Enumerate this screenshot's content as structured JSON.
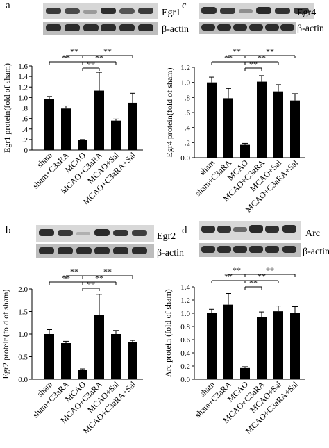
{
  "figure": {
    "panels": [
      "a",
      "b",
      "c",
      "d"
    ]
  },
  "blots": {
    "a": {
      "target": "Egr1",
      "control": "β-actin"
    },
    "b": {
      "target": "Egr2",
      "control": "β-actin"
    },
    "c": {
      "target": "Egr4",
      "control": "β-actin"
    },
    "d": {
      "target": "Arc",
      "control": "β-actin"
    }
  },
  "significance_label": "**",
  "chart_data": [
    {
      "panel": "a",
      "type": "bar",
      "categories": [
        "sham",
        "sham+C3aRA",
        "MCAO",
        "MCAO+C3aRA",
        "MCAO+Sal",
        "MCAO+C3aRA+Sal"
      ],
      "values": [
        0.97,
        0.79,
        0.19,
        1.13,
        0.56,
        0.9
      ],
      "errors": [
        0.05,
        0.05,
        0.01,
        0.35,
        0.03,
        0.18
      ],
      "ylabel": "Egr1 protein(fold of sham)",
      "xlabel": "",
      "ylim": [
        0,
        1.6
      ],
      "yticks": [
        0,
        0.2,
        0.4,
        0.6,
        0.8,
        1.0,
        1.2,
        1.4,
        1.6
      ],
      "ytick_labels": [
        "0",
        ".2",
        ".4",
        ".6",
        ".8",
        "1.0",
        "1.2",
        "1.4",
        "1.6"
      ],
      "grid": false,
      "significance": [
        {
          "from": 0,
          "to": 2,
          "label": "**"
        },
        {
          "from": 1,
          "to": 2,
          "label": "**"
        },
        {
          "from": 2,
          "to": 3,
          "label": "**"
        },
        {
          "from": 2,
          "to": 4,
          "label": "**"
        },
        {
          "from": 2,
          "to": 5,
          "label": "**"
        }
      ]
    },
    {
      "panel": "b",
      "type": "bar",
      "categories": [
        "sham",
        "sham+C3aRA",
        "MCAO",
        "MCAO+C3aRA",
        "MCAO+Sal",
        "MCAO+C3aRA+Sal"
      ],
      "values": [
        1.0,
        0.8,
        0.21,
        1.43,
        1.0,
        0.83
      ],
      "errors": [
        0.1,
        0.04,
        0.02,
        0.45,
        0.08,
        0.03
      ],
      "ylabel": "Egr2 protein(fold of sham)",
      "xlabel": "",
      "ylim": [
        0,
        2.0
      ],
      "yticks": [
        0,
        0.5,
        1.0,
        1.5,
        2.0
      ],
      "ytick_labels": [
        "0.0",
        "0.5",
        "1.0",
        "1.5",
        "2.0"
      ],
      "grid": false,
      "significance": [
        {
          "from": 0,
          "to": 2,
          "label": "**"
        },
        {
          "from": 1,
          "to": 2,
          "label": "**"
        },
        {
          "from": 2,
          "to": 3,
          "label": "**"
        },
        {
          "from": 2,
          "to": 4,
          "label": "**"
        },
        {
          "from": 2,
          "to": 5,
          "label": "**"
        }
      ]
    },
    {
      "panel": "c",
      "type": "bar",
      "categories": [
        "sham",
        "sham+C3aRA",
        "MCAO",
        "MCAO+C3aRA",
        "MCAO+Sal",
        "MCAO+C3aRA+Sal"
      ],
      "values": [
        1.0,
        0.79,
        0.17,
        1.01,
        0.88,
        0.76
      ],
      "errors": [
        0.07,
        0.13,
        0.02,
        0.08,
        0.09,
        0.09
      ],
      "ylabel": "Egr4 protein(fold of sham)",
      "xlabel": "",
      "ylim": [
        0,
        1.2
      ],
      "yticks": [
        0,
        0.2,
        0.4,
        0.6,
        0.8,
        1.0,
        1.2
      ],
      "ytick_labels": [
        "0.0",
        ".2",
        ".4",
        ".6",
        ".8",
        "1.0",
        "1.2"
      ],
      "grid": false,
      "significance": [
        {
          "from": 0,
          "to": 2,
          "label": "**"
        },
        {
          "from": 1,
          "to": 2,
          "label": "**"
        },
        {
          "from": 2,
          "to": 3,
          "label": "**"
        },
        {
          "from": 2,
          "to": 4,
          "label": "**"
        },
        {
          "from": 2,
          "to": 5,
          "label": "**"
        }
      ]
    },
    {
      "panel": "d",
      "type": "bar",
      "categories": [
        "sham",
        "sham+C3aRA",
        "MCAO",
        "MCAO+C3aRA",
        "MCAO+Sal",
        "MCAO+C3aRA+Sal"
      ],
      "values": [
        1.0,
        1.13,
        0.17,
        0.94,
        1.03,
        1.0
      ],
      "errors": [
        0.06,
        0.17,
        0.02,
        0.08,
        0.08,
        0.1
      ],
      "ylabel": "Arc protein (fold of sham)",
      "xlabel": "",
      "ylim": [
        0,
        1.4
      ],
      "yticks": [
        0,
        0.2,
        0.4,
        0.6,
        0.8,
        1.0,
        1.2,
        1.4
      ],
      "ytick_labels": [
        "0.0",
        "0.2",
        "0.4",
        "0.6",
        "0.8",
        "1.0",
        "1.2",
        "1.4"
      ],
      "grid": false,
      "significance": [
        {
          "from": 0,
          "to": 2,
          "label": "**"
        },
        {
          "from": 1,
          "to": 2,
          "label": "**"
        },
        {
          "from": 2,
          "to": 3,
          "label": "**"
        },
        {
          "from": 2,
          "to": 4,
          "label": "**"
        },
        {
          "from": 2,
          "to": 5,
          "label": "**"
        }
      ]
    }
  ]
}
